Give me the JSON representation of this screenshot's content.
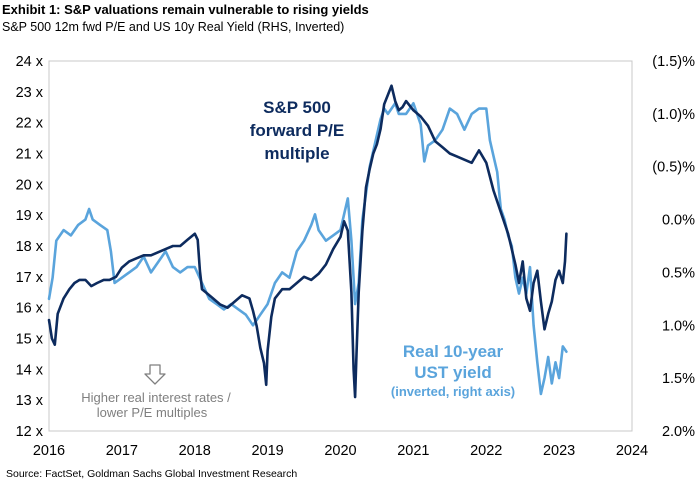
{
  "header": {
    "title": "Exhibit 1: S&P valuations remain vulnerable to rising yields",
    "subtitle": "S&P 500 12m fwd P/E and US 10y Real Yield (RHS, Inverted)"
  },
  "footer": {
    "source": "Source: FactSet, Goldman Sachs Global Investment Research"
  },
  "colors": {
    "pe": "#0d2b5e",
    "yield": "#5aa4dc",
    "note": "#7f7f7f"
  },
  "chart_data": {
    "type": "line",
    "grid": false,
    "x_ticks": [
      "2016",
      "2017",
      "2018",
      "2019",
      "2020",
      "2021",
      "2022",
      "2023",
      "2024"
    ],
    "xlim": [
      2016,
      2024
    ],
    "left_axis": {
      "ylim": [
        12,
        24
      ],
      "ticks": [
        {
          "v": 24,
          "label": "24 x"
        },
        {
          "v": 23,
          "label": "23 x"
        },
        {
          "v": 22,
          "label": "22 x"
        },
        {
          "v": 21,
          "label": "21 x"
        },
        {
          "v": 20,
          "label": "20 x"
        },
        {
          "v": 19,
          "label": "19 x"
        },
        {
          "v": 18,
          "label": "18 x"
        },
        {
          "v": 17,
          "label": "17 x"
        },
        {
          "v": 16,
          "label": "16 x"
        },
        {
          "v": 15,
          "label": "15 x"
        },
        {
          "v": 14,
          "label": "14 x"
        },
        {
          "v": 13,
          "label": "13 x"
        },
        {
          "v": 12,
          "label": "12 x"
        }
      ]
    },
    "right_axis": {
      "inverted": true,
      "ylim": [
        -1.5,
        2.0
      ],
      "ticks": [
        {
          "v": -1.5,
          "label": "(1.5)%"
        },
        {
          "v": -1.0,
          "label": "(1.0)%"
        },
        {
          "v": -0.5,
          "label": "(0.5)%"
        },
        {
          "v": 0.0,
          "label": "0.0%"
        },
        {
          "v": 0.5,
          "label": "0.5%"
        },
        {
          "v": 1.0,
          "label": "1.0%"
        },
        {
          "v": 1.5,
          "label": "1.5%"
        },
        {
          "v": 2.0,
          "label": "2.0%"
        }
      ]
    },
    "annotations": {
      "pe": [
        "S&P 500",
        "forward P/E",
        "multiple"
      ],
      "yield": [
        "Real 10-year",
        "UST yield"
      ],
      "yield_sub": "(inverted, right axis)",
      "note": [
        "Higher real interest rates /",
        "lower P/E multiples"
      ]
    },
    "series": [
      {
        "axis": "left",
        "x": [
          2016.0,
          2016.04,
          2016.08,
          2016.12,
          2016.2,
          2016.28,
          2016.35,
          2016.42,
          2016.5,
          2016.58,
          2016.66,
          2016.75,
          2016.83,
          2016.92,
          2017.0,
          2017.1,
          2017.2,
          2017.3,
          2017.4,
          2017.5,
          2017.6,
          2017.7,
          2017.8,
          2017.9,
          2018.0,
          2018.04,
          2018.07,
          2018.1,
          2018.15,
          2018.25,
          2018.35,
          2018.45,
          2018.55,
          2018.65,
          2018.75,
          2018.8,
          2018.85,
          2018.9,
          2018.95,
          2018.98,
          2019.0,
          2019.05,
          2019.1,
          2019.2,
          2019.3,
          2019.4,
          2019.5,
          2019.6,
          2019.7,
          2019.8,
          2019.9,
          2020.0,
          2020.05,
          2020.1,
          2020.15,
          2020.18,
          2020.2,
          2020.22,
          2020.25,
          2020.3,
          2020.35,
          2020.4,
          2020.45,
          2020.5,
          2020.55,
          2020.6,
          2020.65,
          2020.7,
          2020.75,
          2020.8,
          2020.85,
          2020.9,
          2021.0,
          2021.1,
          2021.2,
          2021.3,
          2021.4,
          2021.5,
          2021.6,
          2021.7,
          2021.8,
          2021.9,
          2022.0,
          2022.1,
          2022.2,
          2022.3,
          2022.4,
          2022.45,
          2022.5,
          2022.55,
          2022.6,
          2022.65,
          2022.7,
          2022.75,
          2022.8,
          2022.85,
          2022.9,
          2022.95,
          2023.0,
          2023.05,
          2023.08,
          2023.1
        ],
        "values": [
          15.6,
          15.0,
          14.8,
          15.8,
          16.3,
          16.6,
          16.8,
          16.9,
          16.9,
          16.7,
          16.8,
          16.9,
          16.9,
          17.0,
          17.3,
          17.5,
          17.6,
          17.7,
          17.7,
          17.8,
          17.9,
          18.0,
          18.0,
          18.2,
          18.4,
          18.2,
          17.2,
          16.6,
          16.5,
          16.3,
          16.1,
          16.0,
          16.2,
          16.4,
          16.3,
          15.9,
          15.4,
          14.7,
          14.2,
          13.5,
          14.6,
          15.7,
          16.3,
          16.6,
          16.6,
          16.8,
          17.0,
          16.9,
          17.1,
          17.4,
          17.9,
          18.3,
          18.8,
          18.5,
          16.5,
          14.0,
          13.1,
          14.5,
          16.5,
          18.5,
          19.9,
          20.5,
          21.0,
          21.3,
          21.8,
          22.6,
          22.9,
          23.2,
          22.7,
          22.4,
          22.5,
          22.7,
          22.4,
          22.2,
          21.9,
          21.4,
          21.2,
          21.0,
          20.9,
          20.8,
          20.7,
          21.1,
          20.7,
          19.8,
          19.1,
          18.4,
          17.4,
          16.8,
          17.5,
          16.3,
          15.9,
          16.8,
          17.2,
          16.2,
          15.3,
          15.8,
          16.2,
          16.9,
          17.2,
          16.8,
          17.5,
          18.4
        ]
      },
      {
        "axis": "right",
        "x": [
          2016.0,
          2016.05,
          2016.1,
          2016.2,
          2016.3,
          2016.4,
          2016.5,
          2016.55,
          2016.6,
          2016.7,
          2016.8,
          2016.85,
          2016.9,
          2017.0,
          2017.1,
          2017.2,
          2017.3,
          2017.4,
          2017.5,
          2017.6,
          2017.7,
          2017.8,
          2017.9,
          2018.0,
          2018.1,
          2018.2,
          2018.3,
          2018.4,
          2018.5,
          2018.6,
          2018.7,
          2018.8,
          2018.85,
          2018.9,
          2019.0,
          2019.1,
          2019.2,
          2019.3,
          2019.4,
          2019.5,
          2019.6,
          2019.65,
          2019.7,
          2019.8,
          2019.9,
          2020.0,
          2020.05,
          2020.1,
          2020.15,
          2020.2,
          2020.25,
          2020.3,
          2020.4,
          2020.5,
          2020.55,
          2020.6,
          2020.65,
          2020.7,
          2020.75,
          2020.8,
          2020.9,
          2021.0,
          2021.1,
          2021.15,
          2021.2,
          2021.3,
          2021.4,
          2021.45,
          2021.5,
          2021.6,
          2021.7,
          2021.8,
          2021.9,
          2022.0,
          2022.05,
          2022.1,
          2022.15,
          2022.2,
          2022.25,
          2022.3,
          2022.35,
          2022.4,
          2022.45,
          2022.5,
          2022.55,
          2022.6,
          2022.65,
          2022.7,
          2022.75,
          2022.8,
          2022.85,
          2022.9,
          2022.95,
          2023.0,
          2023.05,
          2023.1
        ],
        "values": [
          0.75,
          0.55,
          0.2,
          0.1,
          0.15,
          0.05,
          0.0,
          -0.1,
          0.0,
          0.05,
          0.1,
          0.3,
          0.6,
          0.55,
          0.5,
          0.45,
          0.35,
          0.5,
          0.4,
          0.3,
          0.45,
          0.5,
          0.45,
          0.45,
          0.6,
          0.75,
          0.8,
          0.85,
          0.8,
          0.85,
          0.9,
          1.0,
          0.95,
          0.9,
          0.8,
          0.6,
          0.5,
          0.55,
          0.3,
          0.2,
          0.05,
          -0.05,
          0.1,
          0.2,
          0.15,
          0.1,
          -0.05,
          -0.2,
          0.2,
          0.8,
          0.6,
          0.0,
          -0.5,
          -0.8,
          -0.95,
          -1.05,
          -1.0,
          -1.05,
          -1.1,
          -1.0,
          -1.0,
          -1.1,
          -0.9,
          -0.55,
          -0.7,
          -0.75,
          -0.85,
          -0.95,
          -1.05,
          -1.0,
          -0.85,
          -1.0,
          -1.05,
          -1.05,
          -0.75,
          -0.6,
          -0.45,
          -0.1,
          0.0,
          0.15,
          0.25,
          0.55,
          0.7,
          0.55,
          0.7,
          0.45,
          1.0,
          1.35,
          1.65,
          1.5,
          1.3,
          1.55,
          1.35,
          1.5,
          1.2,
          1.25
        ]
      }
    ]
  }
}
